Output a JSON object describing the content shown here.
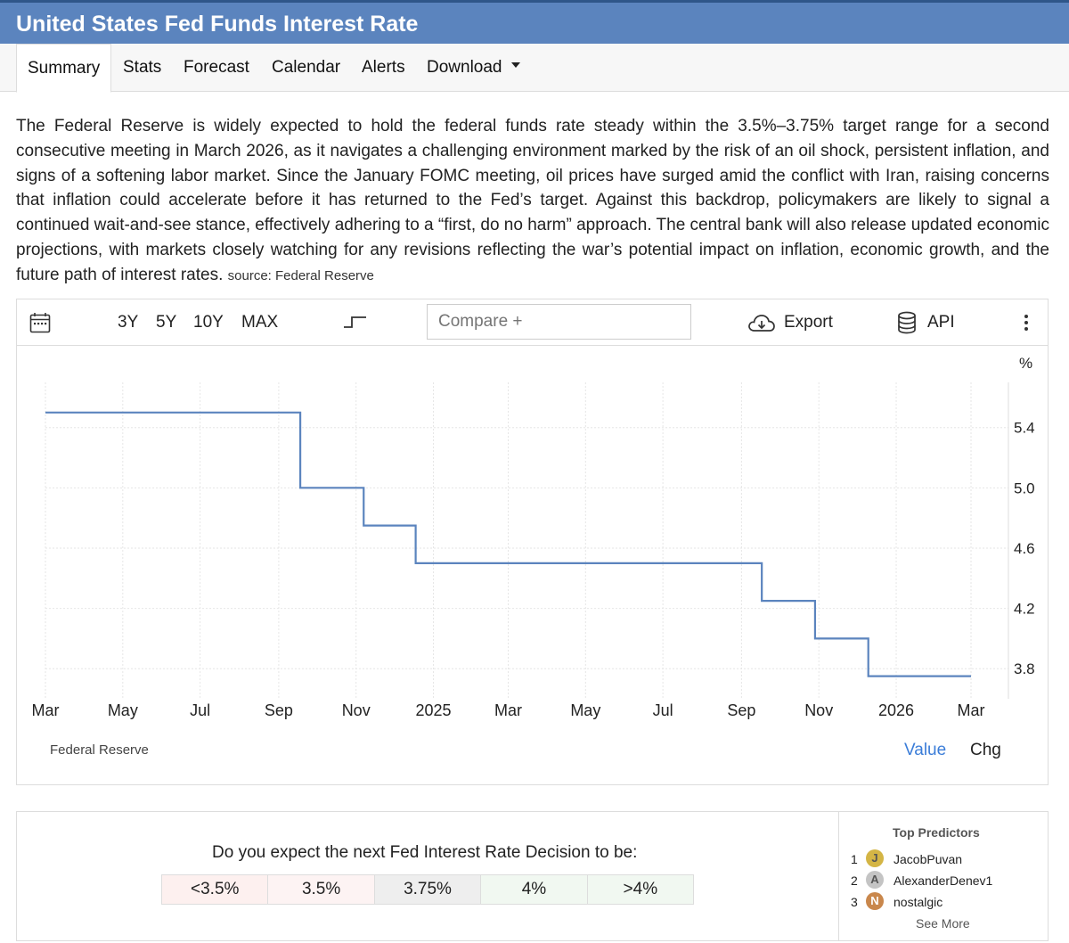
{
  "title": "United States Fed Funds Interest Rate",
  "tabs": [
    {
      "label": "Summary"
    },
    {
      "label": "Stats"
    },
    {
      "label": "Forecast"
    },
    {
      "label": "Calendar"
    },
    {
      "label": "Alerts"
    },
    {
      "label": "Download"
    }
  ],
  "description": "The Federal Reserve is widely expected to hold the federal funds rate steady within the 3.5%–3.75% target range for a second consecutive meeting in March 2026, as it navigates a challenging environment marked by the risk of an oil shock, persistent inflation, and signs of a softening labor market. Since the January FOMC meeting, oil prices have surged amid the conflict with Iran, raising concerns that inflation could accelerate before it has returned to the Fed’s target. Against this backdrop, policymakers are likely to signal a continued wait-and-see stance, effectively adhering to a “first, do no harm” approach. The central bank will also release updated economic projections, with markets closely watching for any revisions reflecting the war’s potential impact on inflation, economic growth, and the future path of interest rates.",
  "description_source": "source: Federal Reserve",
  "toolbar": {
    "ranges": [
      "3Y",
      "5Y",
      "10Y",
      "MAX"
    ],
    "compare_placeholder": "Compare +",
    "export_label": "Export",
    "api_label": "API",
    "calendar_icon": "calendar-icon",
    "step_icon": "step-chart-icon",
    "export_icon": "cloud-download-icon",
    "api_icon": "database-icon",
    "more_icon": "more-vertical-icon"
  },
  "chart_footer": {
    "source": "Federal Reserve",
    "value_label": "Value",
    "chg_label": "Chg"
  },
  "chart_data": {
    "type": "line",
    "step": true,
    "unit_label": "%",
    "line_color": "#5b84be",
    "x_tick_labels": [
      "Mar",
      "May",
      "Jul",
      "Sep",
      "Nov",
      "2025",
      "Mar",
      "May",
      "Jul",
      "Sep",
      "Nov",
      "2026",
      "Mar"
    ],
    "x_tick_dates": [
      "2024-03-01",
      "2024-05-01",
      "2024-07-01",
      "2024-09-01",
      "2024-11-01",
      "2025-01-01",
      "2025-03-01",
      "2025-05-01",
      "2025-07-01",
      "2025-09-01",
      "2025-11-01",
      "2026-01-01",
      "2026-03-01"
    ],
    "y_ticks": [
      "3.8",
      "4.2",
      "4.6",
      "5.0",
      "5.4"
    ],
    "ylim": [
      3.6,
      5.7
    ],
    "grid": true,
    "series": [
      {
        "points": [
          {
            "x": "2024-03-01",
            "y": 5.5
          },
          {
            "x": "2024-09-18",
            "y": 5.0
          },
          {
            "x": "2024-11-07",
            "y": 4.75
          },
          {
            "x": "2024-12-18",
            "y": 4.5
          },
          {
            "x": "2025-09-17",
            "y": 4.25
          },
          {
            "x": "2025-10-29",
            "y": 4.0
          },
          {
            "x": "2025-12-10",
            "y": 3.75
          },
          {
            "x": "2026-03-01",
            "y": 3.75
          }
        ]
      }
    ]
  },
  "poll": {
    "question": "Do you expect the next Fed Interest Rate Decision to be:",
    "options": [
      {
        "label": "<3.5%",
        "color": "#fdf0ef"
      },
      {
        "label": "3.5%",
        "color": "#fdf3f3"
      },
      {
        "label": "3.75%",
        "color": "#eeeeee"
      },
      {
        "label": "4%",
        "color": "#f1f8f1"
      },
      {
        "label": ">4%",
        "color": "#f1f8f1"
      }
    ]
  },
  "predictors": {
    "title": "Top Predictors",
    "items": [
      {
        "rank": "1",
        "initial": "J",
        "name": "JacobPuvan",
        "color": "#d4b545"
      },
      {
        "rank": "2",
        "initial": "A",
        "name": "AlexanderDenev1",
        "color": "#c4c4c4"
      },
      {
        "rank": "3",
        "initial": "N",
        "name": "nostalgic",
        "color": "#c9874c"
      }
    ],
    "see_more": "See More"
  }
}
